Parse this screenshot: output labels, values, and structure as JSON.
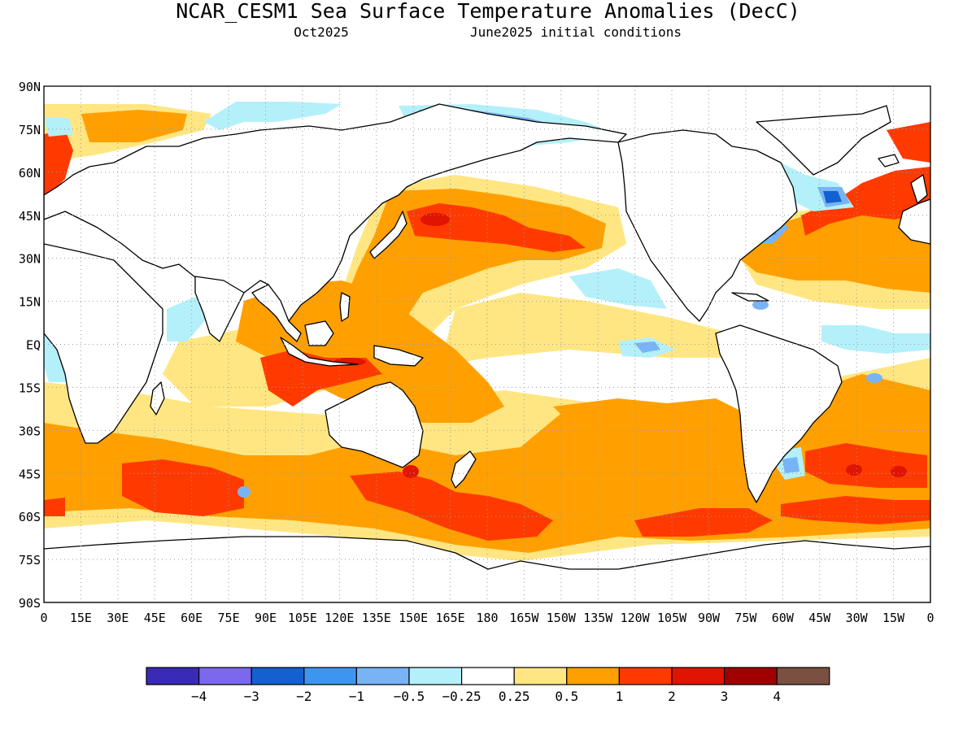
{
  "header": {
    "title": "NCAR_CESM1 Sea Surface Temperature Anomalies (DecC)",
    "subtitle_left": "Oct2025",
    "subtitle_right": "June2025 initial conditions"
  },
  "map": {
    "lat_labels": [
      "90N",
      "75N",
      "60N",
      "45N",
      "30N",
      "15N",
      "EQ",
      "15S",
      "30S",
      "45S",
      "60S",
      "75S",
      "90S"
    ],
    "lon_labels": [
      "0",
      "15E",
      "30E",
      "45E",
      "60E",
      "75E",
      "90E",
      "105E",
      "120E",
      "135E",
      "150E",
      "165E",
      "180",
      "165W",
      "150W",
      "135W",
      "120W",
      "105W",
      "90W",
      "75W",
      "60W",
      "45W",
      "30W",
      "15W",
      "0"
    ],
    "projection": "cylindrical equidistant",
    "grid": "dotted",
    "lon_range": [
      0,
      360
    ],
    "lat_range": [
      -90,
      90
    ]
  },
  "colorbar": {
    "colors": [
      "#3a2ab8",
      "#7b68ee",
      "#1560d0",
      "#3c96f0",
      "#78b4f5",
      "#b4f0fa",
      "#ffffff",
      "#ffe682",
      "#ffa000",
      "#ff3a00",
      "#e01400",
      "#a00000",
      "#7a5040"
    ],
    "labels": [
      "−4",
      "−3",
      "−2",
      "−1",
      "−0.5",
      "−0.25",
      "0.25",
      "0.5",
      "1",
      "2",
      "3",
      "4"
    ]
  },
  "palette": {
    "land": "#ffffff",
    "coast": "#000000",
    "pos1": "#ffe682",
    "pos2": "#ffa000",
    "pos3": "#ff3a00",
    "pos4": "#e01400",
    "neg1": "#b4f0fa",
    "neg2": "#78b4f5",
    "neg3": "#3c96f0",
    "neg4": "#1560d0"
  }
}
